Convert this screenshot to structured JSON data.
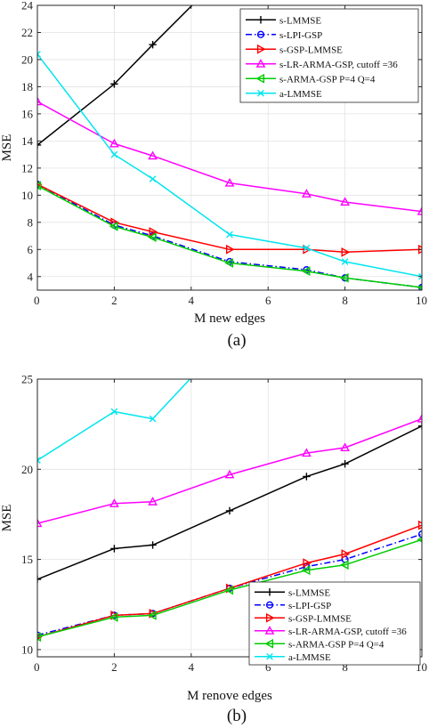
{
  "chart_data": [
    {
      "type": "line",
      "caption": "(a)",
      "xlabel": "M new edges",
      "ylabel": "MSE",
      "xlim": [
        0,
        10
      ],
      "ylim": [
        3,
        24
      ],
      "xticks": [
        0,
        2,
        4,
        6,
        8,
        10
      ],
      "yticks": [
        4,
        6,
        8,
        10,
        12,
        14,
        16,
        18,
        20,
        22,
        24
      ],
      "grid": true,
      "legend_position": "top-right",
      "series": [
        {
          "name": "s-LMMSE",
          "color": "#000000",
          "dash": "solid",
          "marker": "plus",
          "x": [
            0,
            2,
            3,
            4.2
          ],
          "y": [
            13.7,
            18.2,
            21.1,
            24.5
          ]
        },
        {
          "name": "s-LPI-GSP",
          "color": "#0000ff",
          "dash": "dashdot",
          "marker": "circle",
          "x": [
            0,
            2,
            3,
            5,
            7,
            8,
            10
          ],
          "y": [
            10.8,
            7.8,
            7.0,
            5.1,
            4.5,
            3.9,
            3.2
          ]
        },
        {
          "name": "s-GSP-LMMSE",
          "color": "#ff0000",
          "dash": "solid",
          "marker": "triangle-right",
          "x": [
            0,
            2,
            3,
            5,
            7,
            8,
            10
          ],
          "y": [
            10.8,
            8.0,
            7.3,
            6.0,
            6.0,
            5.8,
            6.0
          ]
        },
        {
          "name": "s-LR-ARMA-GSP, cutoff =36",
          "color": "#ff00ff",
          "dash": "solid",
          "marker": "triangle-up",
          "x": [
            0,
            2,
            3,
            5,
            7,
            8,
            10
          ],
          "y": [
            16.9,
            13.8,
            12.9,
            10.9,
            10.1,
            9.5,
            8.8
          ]
        },
        {
          "name": "s-ARMA-GSP P=4 Q=4",
          "color": "#00cc00",
          "dash": "solid",
          "marker": "triangle-left",
          "x": [
            0,
            2,
            3,
            5,
            7,
            8,
            10
          ],
          "y": [
            10.7,
            7.7,
            6.9,
            5.0,
            4.4,
            3.9,
            3.2
          ]
        },
        {
          "name": "a-LMMSE",
          "color": "#00e5ee",
          "dash": "solid",
          "marker": "x",
          "x": [
            0,
            2,
            3,
            5,
            7,
            8,
            10
          ],
          "y": [
            20.4,
            13.0,
            11.2,
            7.1,
            6.1,
            5.1,
            4.0
          ]
        }
      ]
    },
    {
      "type": "line",
      "caption": "(b)",
      "xlabel": "M renove edges",
      "ylabel": "MSE",
      "xlim": [
        0,
        10
      ],
      "ylim": [
        9.6,
        25
      ],
      "xticks": [
        0,
        2,
        4,
        6,
        8,
        10
      ],
      "yticks": [
        10,
        15,
        20,
        25
      ],
      "grid": true,
      "legend_position": "bottom-right",
      "series": [
        {
          "name": "s-LMMSE",
          "color": "#000000",
          "dash": "solid",
          "marker": "plus",
          "x": [
            0,
            2,
            3,
            5,
            7,
            8,
            10
          ],
          "y": [
            13.9,
            15.6,
            15.8,
            17.7,
            19.6,
            20.3,
            22.4
          ]
        },
        {
          "name": "s-LPI-GSP",
          "color": "#0000ff",
          "dash": "dashdot",
          "marker": "circle",
          "x": [
            0,
            2,
            3,
            5,
            7,
            8,
            10
          ],
          "y": [
            10.8,
            11.9,
            12.0,
            13.4,
            14.6,
            15.0,
            16.4
          ]
        },
        {
          "name": "s-GSP-LMMSE",
          "color": "#ff0000",
          "dash": "solid",
          "marker": "triangle-right",
          "x": [
            0,
            2,
            3,
            5,
            7,
            8,
            10
          ],
          "y": [
            10.7,
            11.9,
            12.0,
            13.4,
            14.8,
            15.3,
            16.9
          ]
        },
        {
          "name": "s-LR-ARMA-GSP, cutoff =36",
          "color": "#ff00ff",
          "dash": "solid",
          "marker": "triangle-up",
          "x": [
            0,
            2,
            3,
            5,
            7,
            8,
            10
          ],
          "y": [
            17.0,
            18.1,
            18.2,
            19.7,
            20.9,
            21.2,
            22.8
          ]
        },
        {
          "name": "s-ARMA-GSP P=4 Q=4",
          "color": "#00cc00",
          "dash": "solid",
          "marker": "triangle-left",
          "x": [
            0,
            2,
            3,
            5,
            7,
            8,
            10
          ],
          "y": [
            10.7,
            11.8,
            11.9,
            13.3,
            14.4,
            14.7,
            16.1
          ]
        },
        {
          "name": "a-LMMSE",
          "color": "#00e5ee",
          "dash": "solid",
          "marker": "x",
          "x": [
            0,
            2,
            3,
            4.1
          ],
          "y": [
            20.5,
            23.2,
            22.8,
            25.3
          ]
        }
      ]
    }
  ]
}
